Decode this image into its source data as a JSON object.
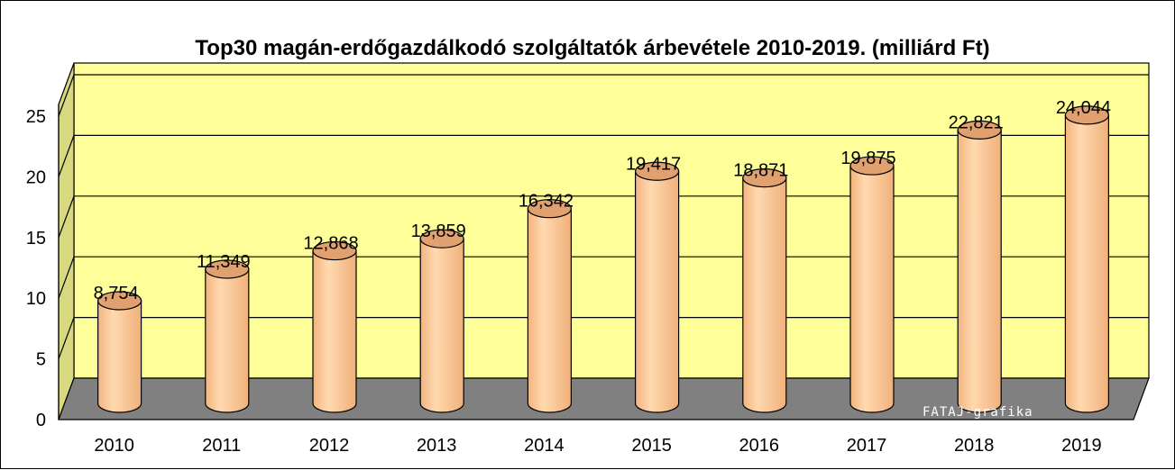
{
  "chart_data": {
    "type": "bar",
    "style": "3d-cylinder",
    "title": "Top30 magán-erdőgazdálkodó szolgáltatók árbevétele 2010-2019. (milliárd Ft)",
    "xlabel": "",
    "ylabel": "",
    "categories": [
      "2010",
      "2011",
      "2012",
      "2013",
      "2014",
      "2015",
      "2016",
      "2017",
      "2018",
      "2019"
    ],
    "values": [
      8.754,
      11.349,
      12.868,
      13.859,
      16.342,
      19.417,
      18.871,
      19.875,
      22.821,
      24.044
    ],
    "value_labels": [
      "8,754",
      "11,349",
      "12,868",
      "13,859",
      "16,342",
      "19,417",
      "18,871",
      "19,875",
      "22,821",
      "24,044"
    ],
    "ylim": [
      0,
      25
    ],
    "yticks": [
      0,
      5,
      10,
      15,
      20,
      25
    ],
    "grid": true,
    "legend": "none",
    "colors": {
      "bar": "#ffcc99",
      "bar_shadow": "#e0a070",
      "wall": "#ffff99",
      "side_wall": "#d8d880",
      "floor": "#808080"
    }
  },
  "watermark": "FATAJ-grafika"
}
